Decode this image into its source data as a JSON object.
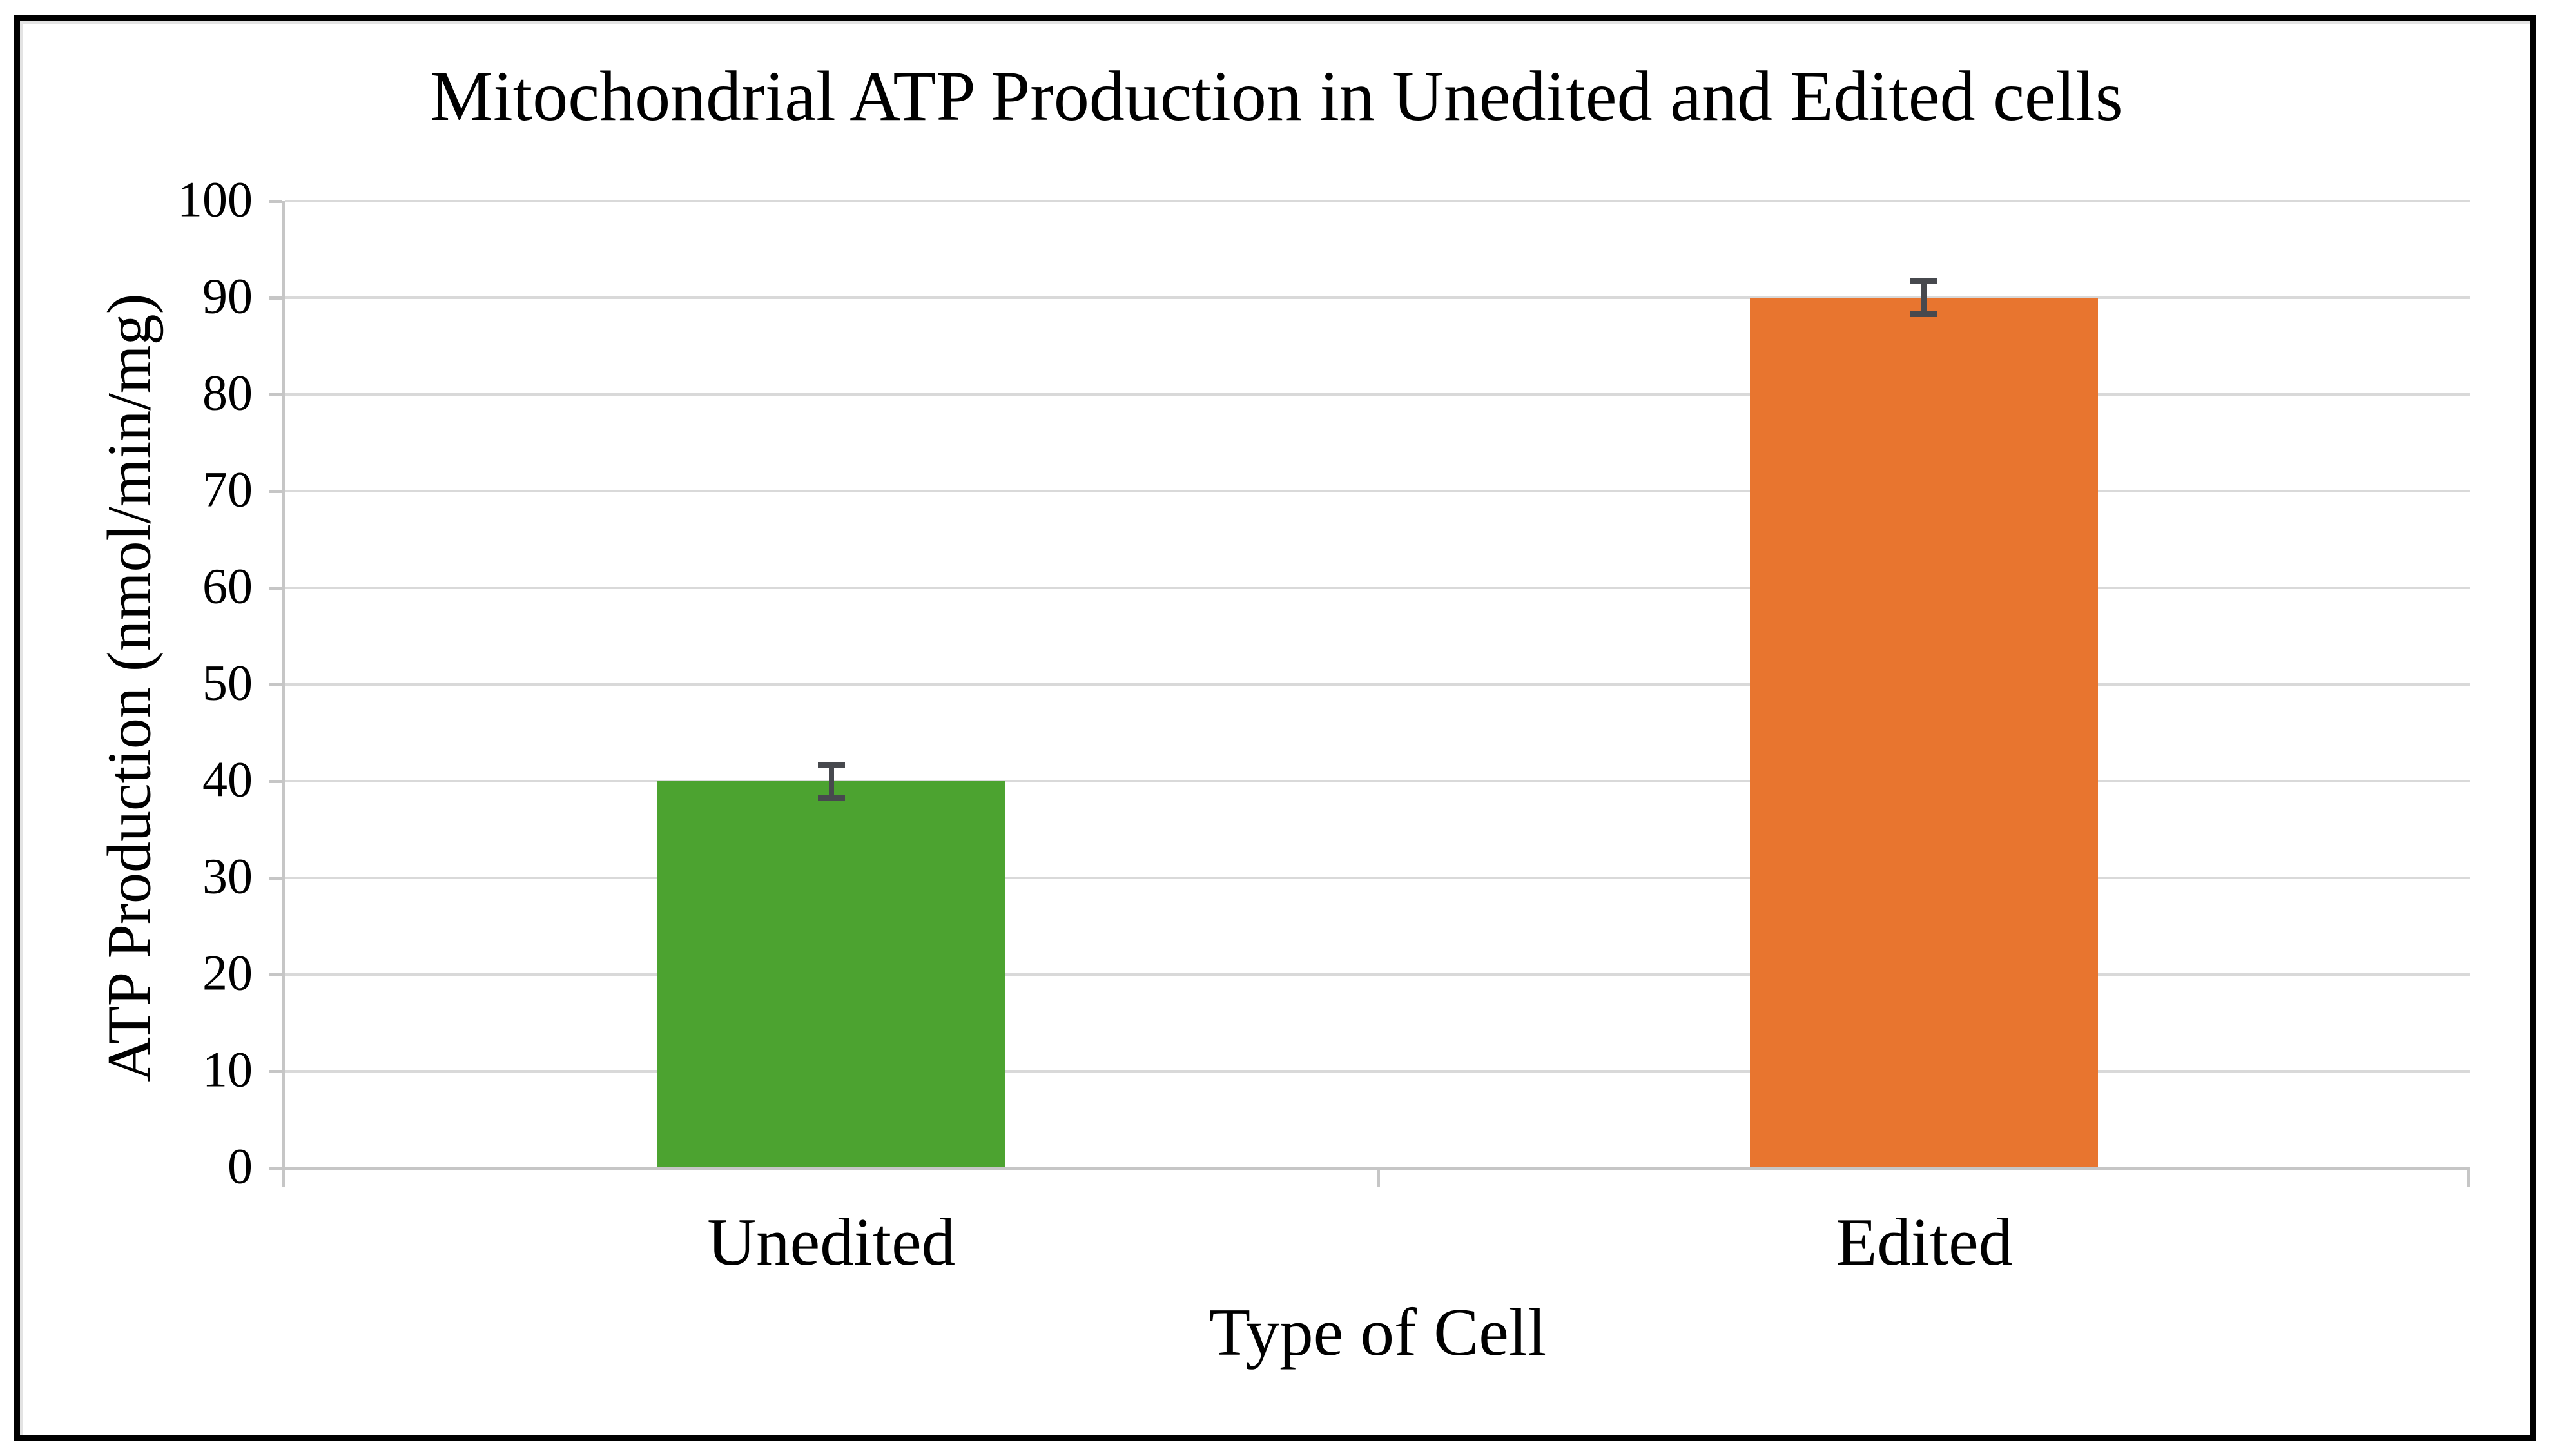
{
  "chart_data": {
    "type": "bar",
    "title": "Mitochondrial ATP Production in Unedited and Edited cells",
    "xlabel": "Type of Cell",
    "ylabel": "ATP Production (nmol/min/mg)",
    "categories": [
      "Unedited",
      "Edited"
    ],
    "values": [
      40,
      90
    ],
    "error_bars_plus_minus": [
      2,
      2
    ],
    "bar_colors": [
      "#4CA330",
      "#E8752F"
    ],
    "error_bar_color": "#47494E",
    "gridline_color": "#d9d9d9",
    "axis_line_color": "#c6c6c6",
    "ylim": [
      0,
      100
    ],
    "ytick_step": 10,
    "yticks": [
      100,
      90,
      80,
      70,
      60,
      50,
      40,
      30,
      20,
      10,
      0
    ],
    "grid": "horizontal",
    "legend": "none"
  }
}
